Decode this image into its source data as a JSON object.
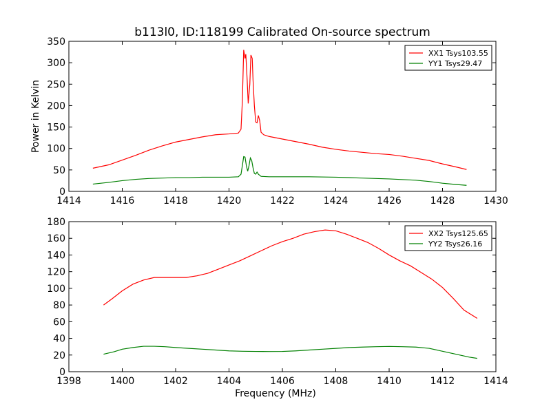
{
  "title": "b113l0, ID:118199 Calibrated On-source spectrum",
  "chart_data": [
    {
      "type": "line",
      "ylabel": "Power in Kelvin",
      "xlabel": "",
      "xlim": [
        1414,
        1430
      ],
      "ylim": [
        0,
        350
      ],
      "xticks": [
        1414,
        1416,
        1418,
        1420,
        1422,
        1424,
        1426,
        1428,
        1430
      ],
      "yticks": [
        0,
        50,
        100,
        150,
        200,
        250,
        300,
        350
      ],
      "grid": false,
      "legend": "top-right",
      "series": [
        {
          "name": "XX1 Tsys103.55",
          "color": "#ff0000",
          "points": [
            [
              1414.9,
              54
            ],
            [
              1415.5,
              62
            ],
            [
              1416.0,
              73
            ],
            [
              1416.5,
              84
            ],
            [
              1417.0,
              96
            ],
            [
              1417.5,
              106
            ],
            [
              1418.0,
              115
            ],
            [
              1418.5,
              121
            ],
            [
              1419.0,
              127
            ],
            [
              1419.5,
              132
            ],
            [
              1420.0,
              134
            ],
            [
              1420.35,
              136
            ],
            [
              1420.45,
              145
            ],
            [
              1420.5,
              210
            ],
            [
              1420.55,
              330
            ],
            [
              1420.6,
              310
            ],
            [
              1420.63,
              320
            ],
            [
              1420.68,
              260
            ],
            [
              1420.72,
              205
            ],
            [
              1420.78,
              250
            ],
            [
              1420.82,
              318
            ],
            [
              1420.87,
              310
            ],
            [
              1420.9,
              260
            ],
            [
              1420.95,
              200
            ],
            [
              1421.0,
              162
            ],
            [
              1421.05,
              160
            ],
            [
              1421.1,
              177
            ],
            [
              1421.15,
              165
            ],
            [
              1421.2,
              138
            ],
            [
              1421.3,
              132
            ],
            [
              1421.5,
              128
            ],
            [
              1422.0,
              122
            ],
            [
              1422.5,
              116
            ],
            [
              1423.0,
              110
            ],
            [
              1423.5,
              103
            ],
            [
              1424.0,
              98
            ],
            [
              1424.5,
              94
            ],
            [
              1425.0,
              91
            ],
            [
              1425.5,
              88
            ],
            [
              1426.0,
              86
            ],
            [
              1426.5,
              82
            ],
            [
              1427.0,
              77
            ],
            [
              1427.5,
              72
            ],
            [
              1428.0,
              64
            ],
            [
              1428.5,
              57
            ],
            [
              1428.9,
              51
            ]
          ]
        },
        {
          "name": "YY1 Tsys29.47",
          "color": "#008000",
          "points": [
            [
              1414.9,
              17
            ],
            [
              1415.5,
              21
            ],
            [
              1416.0,
              25
            ],
            [
              1416.5,
              28
            ],
            [
              1417.0,
              30
            ],
            [
              1417.5,
              31
            ],
            [
              1418.0,
              32
            ],
            [
              1418.5,
              32
            ],
            [
              1419.0,
              33
            ],
            [
              1419.5,
              33
            ],
            [
              1420.0,
              33
            ],
            [
              1420.35,
              34
            ],
            [
              1420.45,
              40
            ],
            [
              1420.5,
              60
            ],
            [
              1420.55,
              81
            ],
            [
              1420.6,
              80
            ],
            [
              1420.65,
              60
            ],
            [
              1420.7,
              47
            ],
            [
              1420.75,
              60
            ],
            [
              1420.8,
              78
            ],
            [
              1420.85,
              72
            ],
            [
              1420.9,
              55
            ],
            [
              1420.95,
              42
            ],
            [
              1421.0,
              40
            ],
            [
              1421.05,
              45
            ],
            [
              1421.1,
              40
            ],
            [
              1421.2,
              35
            ],
            [
              1421.5,
              34
            ],
            [
              1422.0,
              34
            ],
            [
              1423.0,
              34
            ],
            [
              1424.0,
              33
            ],
            [
              1425.0,
              31
            ],
            [
              1426.0,
              29
            ],
            [
              1427.0,
              26
            ],
            [
              1427.5,
              23
            ],
            [
              1428.0,
              19
            ],
            [
              1428.5,
              16
            ],
            [
              1428.9,
              14
            ]
          ]
        }
      ]
    },
    {
      "type": "line",
      "ylabel": "",
      "xlabel": "Frequency (MHz)",
      "xlim": [
        1398,
        1414
      ],
      "ylim": [
        0,
        180
      ],
      "xticks": [
        1398,
        1400,
        1402,
        1404,
        1406,
        1408,
        1410,
        1412,
        1414
      ],
      "yticks": [
        0,
        20,
        40,
        60,
        80,
        100,
        120,
        140,
        160,
        180
      ],
      "grid": false,
      "legend": "top-right",
      "series": [
        {
          "name": "XX2 Tsys125.65",
          "color": "#ff0000",
          "points": [
            [
              1399.3,
              80
            ],
            [
              1399.6,
              87
            ],
            [
              1400.0,
              97
            ],
            [
              1400.4,
              105
            ],
            [
              1400.8,
              110
            ],
            [
              1401.2,
              113
            ],
            [
              1401.6,
              113
            ],
            [
              1402.0,
              113
            ],
            [
              1402.4,
              113
            ],
            [
              1402.8,
              115
            ],
            [
              1403.2,
              118
            ],
            [
              1403.6,
              123
            ],
            [
              1404.0,
              128
            ],
            [
              1404.4,
              133
            ],
            [
              1404.8,
              139
            ],
            [
              1405.2,
              145
            ],
            [
              1405.6,
              151
            ],
            [
              1406.0,
              156
            ],
            [
              1406.4,
              160
            ],
            [
              1406.8,
              165
            ],
            [
              1407.2,
              168
            ],
            [
              1407.6,
              170
            ],
            [
              1408.0,
              169
            ],
            [
              1408.4,
              165
            ],
            [
              1408.8,
              160
            ],
            [
              1409.2,
              155
            ],
            [
              1409.6,
              148
            ],
            [
              1410.0,
              140
            ],
            [
              1410.4,
              133
            ],
            [
              1410.8,
              127
            ],
            [
              1411.2,
              119
            ],
            [
              1411.6,
              111
            ],
            [
              1412.0,
              101
            ],
            [
              1412.4,
              88
            ],
            [
              1412.8,
              74
            ],
            [
              1413.3,
              64
            ]
          ]
        },
        {
          "name": "YY2 Tsys26.16",
          "color": "#008000",
          "points": [
            [
              1399.3,
              21
            ],
            [
              1399.7,
              24
            ],
            [
              1400.0,
              27
            ],
            [
              1400.4,
              29
            ],
            [
              1400.8,
              30.5
            ],
            [
              1401.2,
              30.5
            ],
            [
              1401.6,
              30
            ],
            [
              1402.0,
              29
            ],
            [
              1402.5,
              28
            ],
            [
              1403.0,
              27
            ],
            [
              1403.5,
              26
            ],
            [
              1404.0,
              25
            ],
            [
              1404.5,
              24.5
            ],
            [
              1405.0,
              24.3
            ],
            [
              1405.5,
              24.2
            ],
            [
              1406.0,
              24.3
            ],
            [
              1406.5,
              25
            ],
            [
              1407.0,
              26
            ],
            [
              1407.5,
              27
            ],
            [
              1408.0,
              28
            ],
            [
              1408.5,
              29
            ],
            [
              1409.0,
              29.5
            ],
            [
              1409.5,
              30
            ],
            [
              1410.0,
              30.3
            ],
            [
              1410.5,
              30
            ],
            [
              1411.0,
              29.5
            ],
            [
              1411.5,
              28
            ],
            [
              1412.0,
              24.5
            ],
            [
              1412.5,
              21
            ],
            [
              1413.0,
              17.5
            ],
            [
              1413.3,
              16
            ]
          ]
        }
      ]
    }
  ]
}
